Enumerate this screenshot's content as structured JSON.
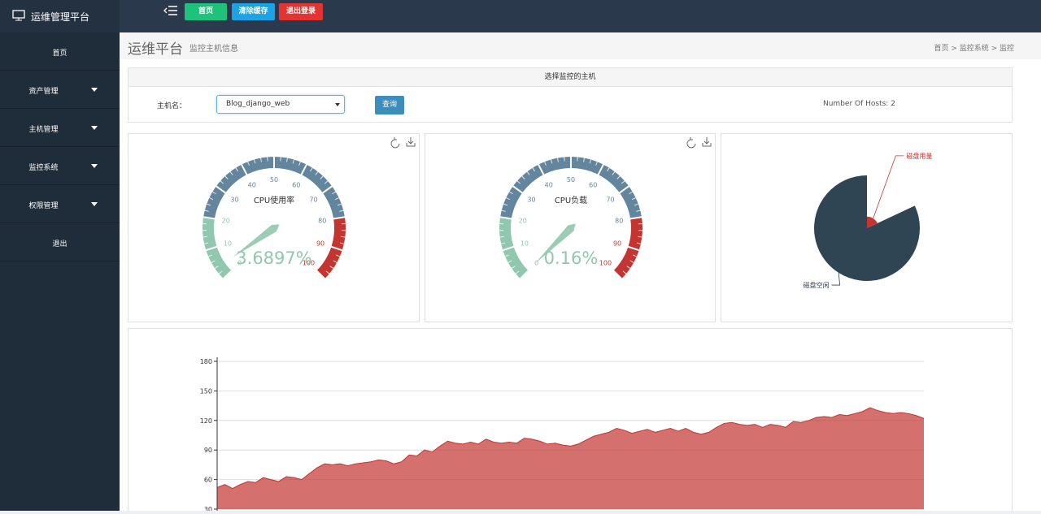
{
  "top_bar": {
    "brand": "运维管理平台",
    "buttons": [
      "首页",
      "清除缓存",
      "退出登录"
    ]
  },
  "sidebar": {
    "items": [
      "首页",
      "资产管理",
      "主机管理",
      "监控系统",
      "权限管理",
      "退出"
    ]
  },
  "content_header": {
    "title": "运维平台",
    "subtitle": "监控主机信息",
    "breadcrumb": "首页 > 监控系统 > 监控"
  },
  "host_panel": {
    "heading": "选择监控的主机",
    "label": "主机名：",
    "selected_host": "Blog_django_web",
    "button": "查询",
    "host_count": "Number Of Hosts: 2"
  },
  "chart_data": [
    {
      "type": "gauge",
      "title": "CPU使用率",
      "value": 3.6897,
      "value_label": "3.6897%",
      "ylim": [
        0,
        100
      ],
      "yticks": [
        0,
        10,
        20,
        30,
        40,
        50,
        60,
        70,
        80,
        90,
        100
      ],
      "bands": [
        {
          "to": 20,
          "color": "#91c7ae"
        },
        {
          "to": 80,
          "color": "#63869e"
        },
        {
          "to": 100,
          "color": "#c23531"
        }
      ]
    },
    {
      "type": "gauge",
      "title": "CPU负载",
      "value": 0.16,
      "value_label": "0.16%",
      "ylim": [
        0,
        100
      ],
      "yticks": [
        0,
        10,
        20,
        30,
        40,
        50,
        60,
        70,
        80,
        90,
        100
      ],
      "bands": [
        {
          "to": 20,
          "color": "#91c7ae"
        },
        {
          "to": 80,
          "color": "#63869e"
        },
        {
          "to": 100,
          "color": "#c23531"
        }
      ]
    },
    {
      "type": "pie",
      "rose": true,
      "categories": [
        "磁盘用量",
        "磁盘空闲"
      ],
      "values": [
        18,
        82
      ],
      "colors": [
        "#c23531",
        "#2f4554"
      ]
    },
    {
      "type": "area",
      "color": "#c23531",
      "ylim": [
        30,
        180
      ],
      "yticks": [
        30,
        60,
        90,
        120,
        150,
        180
      ],
      "grid": true,
      "values": [
        52,
        55,
        51,
        55,
        58,
        57,
        62,
        60,
        58,
        63,
        62,
        60,
        66,
        72,
        76,
        75,
        76,
        74,
        76,
        77,
        78,
        80,
        79,
        76,
        78,
        85,
        84,
        90,
        88,
        94,
        99,
        97,
        96,
        98,
        96,
        101,
        98,
        97,
        98,
        97,
        102,
        101,
        99,
        96,
        97,
        95,
        94,
        96,
        100,
        104,
        106,
        108,
        112,
        110,
        107,
        109,
        111,
        108,
        110,
        112,
        109,
        112,
        108,
        106,
        108,
        113,
        117,
        118,
        116,
        115,
        116,
        113,
        116,
        115,
        113,
        119,
        118,
        120,
        123,
        124,
        123,
        126,
        125,
        127,
        129,
        133,
        130,
        128,
        127,
        128,
        127,
        125,
        122
      ]
    }
  ]
}
